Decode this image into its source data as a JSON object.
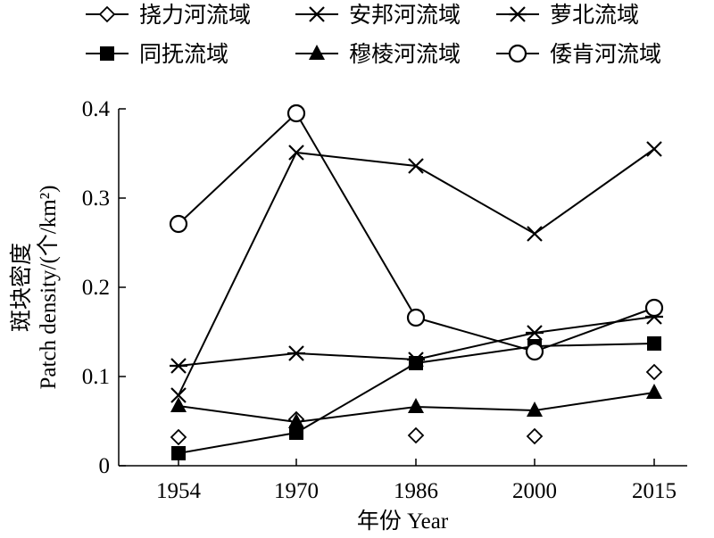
{
  "chart_data": {
    "type": "line",
    "title": "",
    "xlabel": "年份 Year",
    "ylabel_cn": "斑块密度",
    "ylabel_en": "Patch density/(个/km²)",
    "x": [
      "1954",
      "1970",
      "1986",
      "2000",
      "2015"
    ],
    "ylim": [
      0,
      0.4
    ],
    "yticks": [
      "0",
      "0.1",
      "0.2",
      "0.3",
      "0.4"
    ],
    "grid": false,
    "legend_position": "top",
    "series": [
      {
        "name": "挠力河流域",
        "marker": "diamond",
        "connected": false,
        "values": [
          0.032,
          0.052,
          0.034,
          0.033,
          0.105
        ]
      },
      {
        "name": "安邦河流域",
        "marker": "x",
        "connected": true,
        "values": [
          0.079,
          0.351,
          0.336,
          0.26,
          0.355
        ]
      },
      {
        "name": "萝北流域",
        "marker": "star",
        "connected": true,
        "values": [
          0.112,
          0.126,
          0.119,
          0.149,
          0.167
        ]
      },
      {
        "name": "同抚流域",
        "marker": "square",
        "connected": true,
        "values": [
          0.014,
          0.037,
          0.115,
          0.134,
          0.137
        ]
      },
      {
        "name": "穆棱河流域",
        "marker": "triangle",
        "connected": true,
        "values": [
          0.067,
          0.049,
          0.066,
          0.062,
          0.082
        ]
      },
      {
        "name": "倭肯河流域",
        "marker": "circle",
        "connected": true,
        "values": [
          0.271,
          0.395,
          0.166,
          0.128,
          0.177
        ]
      }
    ]
  }
}
